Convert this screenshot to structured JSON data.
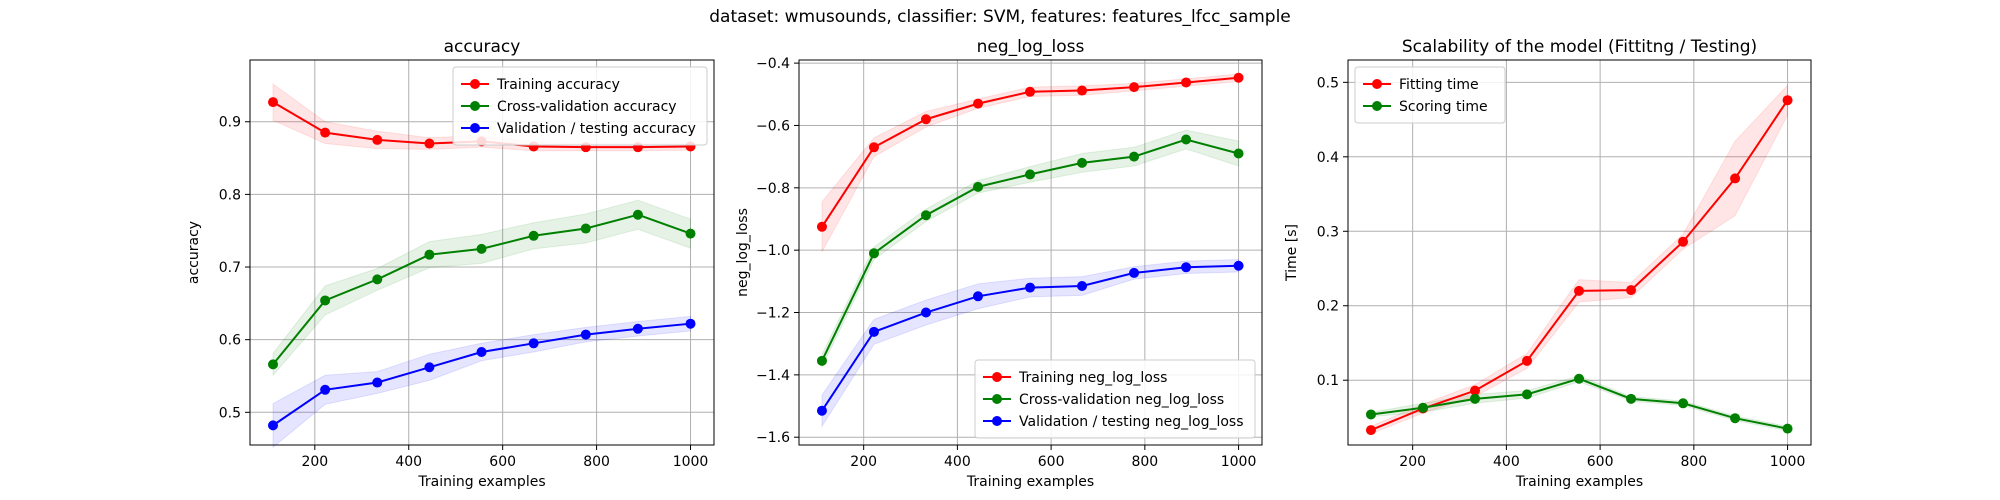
{
  "figure": {
    "suptitle": "dataset: wmusounds, classifier: SVM, features: features_lfcc_sample"
  },
  "chart_data": [
    {
      "type": "line",
      "title": "accuracy",
      "xlabel": "Training examples",
      "ylabel": "accuracy",
      "xlim": [
        62,
        1050
      ],
      "ylim": [
        0.455,
        0.985
      ],
      "xticks": [
        200,
        400,
        600,
        800,
        1000
      ],
      "yticks": [
        0.5,
        0.6,
        0.7,
        0.8,
        0.9
      ],
      "ytick_labels": [
        "0.5",
        "0.6",
        "0.7",
        "0.8",
        "0.9"
      ],
      "grid": true,
      "legend_position": "top-right",
      "x": [
        111,
        222,
        333,
        444,
        555,
        666,
        777,
        888,
        1000
      ],
      "series": [
        {
          "name": "Training accuracy",
          "color": "#ff0000",
          "values": [
            0.927,
            0.885,
            0.875,
            0.87,
            0.873,
            0.866,
            0.865,
            0.865,
            0.866
          ],
          "std": [
            0.025,
            0.015,
            0.012,
            0.008,
            0.008,
            0.006,
            0.005,
            0.005,
            0.005
          ]
        },
        {
          "name": "Cross-validation accuracy",
          "color": "#008000",
          "values": [
            0.566,
            0.654,
            0.683,
            0.717,
            0.725,
            0.743,
            0.753,
            0.772,
            0.746
          ],
          "std": [
            0.015,
            0.02,
            0.015,
            0.018,
            0.02,
            0.018,
            0.02,
            0.02,
            0.02
          ]
        },
        {
          "name": "Validation / testing accuracy",
          "color": "#0000ff",
          "values": [
            0.482,
            0.531,
            0.541,
            0.562,
            0.583,
            0.595,
            0.607,
            0.615,
            0.622
          ],
          "std": [
            0.03,
            0.02,
            0.015,
            0.018,
            0.012,
            0.012,
            0.01,
            0.01,
            0.01
          ]
        }
      ]
    },
    {
      "type": "line",
      "title": "neg_log_loss",
      "xlabel": "Training examples",
      "ylabel": "neg_log_loss",
      "xlim": [
        62,
        1050
      ],
      "ylim": [
        -1.625,
        -0.39
      ],
      "xticks": [
        200,
        400,
        600,
        800,
        1000
      ],
      "yticks": [
        -1.6,
        -1.4,
        -1.2,
        -1.0,
        -0.8,
        -0.6,
        -0.4
      ],
      "ytick_labels": [
        "−1.6",
        "−1.4",
        "−1.2",
        "−1.0",
        "−0.8",
        "−0.6",
        "−0.4"
      ],
      "grid": true,
      "legend_position": "lower-right",
      "x": [
        111,
        222,
        333,
        444,
        555,
        666,
        777,
        888,
        1000
      ],
      "series": [
        {
          "name": "Training neg_log_loss",
          "color": "#ff0000",
          "values": [
            -0.925,
            -0.67,
            -0.58,
            -0.53,
            -0.492,
            -0.488,
            -0.477,
            -0.462,
            -0.447
          ],
          "std": [
            0.08,
            0.03,
            0.025,
            0.015,
            0.015,
            0.015,
            0.012,
            0.012,
            0.012
          ]
        },
        {
          "name": "Cross-validation neg_log_loss",
          "color": "#008000",
          "values": [
            -1.355,
            -1.01,
            -0.888,
            -0.797,
            -0.757,
            -0.72,
            -0.7,
            -0.645,
            -0.69
          ],
          "std": [
            0.02,
            0.02,
            0.02,
            0.02,
            0.025,
            0.03,
            0.03,
            0.03,
            0.04
          ]
        },
        {
          "name": "Validation / testing neg_log_loss",
          "color": "#0000ff",
          "values": [
            -1.515,
            -1.262,
            -1.2,
            -1.148,
            -1.12,
            -1.115,
            -1.073,
            -1.055,
            -1.05
          ],
          "std": [
            0.05,
            0.04,
            0.04,
            0.04,
            0.03,
            0.03,
            0.02,
            0.02,
            0.02
          ]
        }
      ]
    },
    {
      "type": "line",
      "title": "Scalability of the model (Fittitng / Testing)",
      "xlabel": "Training examples",
      "ylabel": "Time [s]",
      "xlim": [
        62,
        1050
      ],
      "ylim": [
        0.013,
        0.53
      ],
      "xticks": [
        200,
        400,
        600,
        800,
        1000
      ],
      "yticks": [
        0.1,
        0.2,
        0.3,
        0.4,
        0.5
      ],
      "ytick_labels": [
        "0.1",
        "0.2",
        "0.3",
        "0.4",
        "0.5"
      ],
      "grid": true,
      "legend_position": "top-left",
      "x": [
        111,
        222,
        333,
        444,
        555,
        666,
        777,
        888,
        1000
      ],
      "series": [
        {
          "name": "Fitting time",
          "color": "#ff0000",
          "values": [
            0.033,
            0.062,
            0.086,
            0.126,
            0.22,
            0.221,
            0.286,
            0.371,
            0.476
          ],
          "std": [
            0.005,
            0.006,
            0.008,
            0.01,
            0.015,
            0.01,
            0.01,
            0.05,
            0.02
          ]
        },
        {
          "name": "Scoring time",
          "color": "#008000",
          "values": [
            0.054,
            0.063,
            0.075,
            0.081,
            0.102,
            0.075,
            0.069,
            0.049,
            0.035
          ],
          "std": [
            0.003,
            0.006,
            0.006,
            0.005,
            0.004,
            0.003,
            0.003,
            0.003,
            0.003
          ]
        }
      ]
    }
  ]
}
